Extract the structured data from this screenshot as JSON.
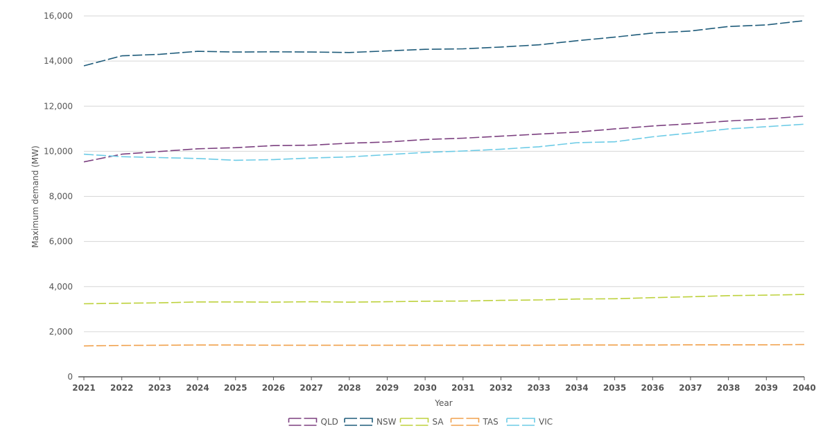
{
  "chart_data": {
    "type": "line",
    "title": "",
    "xlabel": "Year",
    "ylabel": "Maximum demand (MW)",
    "ylim": [
      0,
      16000
    ],
    "yticks": [
      0,
      2000,
      4000,
      6000,
      8000,
      10000,
      12000,
      14000,
      16000
    ],
    "ytick_labels": [
      "0",
      "2,000",
      "4,000",
      "6,000",
      "8,000",
      "10,000",
      "12,000",
      "14,000",
      "16,000"
    ],
    "grid": true,
    "legend_position": "bottom",
    "line_style": "dashed",
    "categories": [
      "2021",
      "2022",
      "2023",
      "2024",
      "2025",
      "2026",
      "2027",
      "2028",
      "2029",
      "2030",
      "2031",
      "2032",
      "2033",
      "2034",
      "2035",
      "2036",
      "2037",
      "2038",
      "2039",
      "2040"
    ],
    "series": [
      {
        "name": "QLD",
        "color": "#7b3f7f",
        "values": [
          9530,
          9870,
          9990,
          10110,
          10160,
          10250,
          10270,
          10360,
          10410,
          10520,
          10580,
          10670,
          10760,
          10850,
          10990,
          11120,
          11220,
          11340,
          11430,
          11560
        ]
      },
      {
        "name": "NSW",
        "color": "#1e5b7a",
        "values": [
          13790,
          14230,
          14300,
          14430,
          14400,
          14410,
          14400,
          14380,
          14450,
          14520,
          14540,
          14620,
          14720,
          14900,
          15060,
          15240,
          15330,
          15530,
          15600,
          15790
        ]
      },
      {
        "name": "SA",
        "color": "#bdd13c",
        "values": [
          3240,
          3260,
          3280,
          3320,
          3320,
          3310,
          3330,
          3310,
          3330,
          3350,
          3360,
          3390,
          3410,
          3450,
          3460,
          3510,
          3550,
          3600,
          3620,
          3650
        ]
      },
      {
        "name": "TAS",
        "color": "#f0a04b",
        "values": [
          1370,
          1390,
          1400,
          1410,
          1410,
          1400,
          1400,
          1400,
          1400,
          1400,
          1400,
          1400,
          1400,
          1410,
          1410,
          1410,
          1420,
          1420,
          1420,
          1430
        ]
      },
      {
        "name": "VIC",
        "color": "#6ccbe6",
        "values": [
          9870,
          9760,
          9720,
          9680,
          9600,
          9630,
          9700,
          9750,
          9850,
          9950,
          10010,
          10090,
          10200,
          10380,
          10420,
          10640,
          10810,
          10990,
          11090,
          11200
        ]
      }
    ]
  }
}
